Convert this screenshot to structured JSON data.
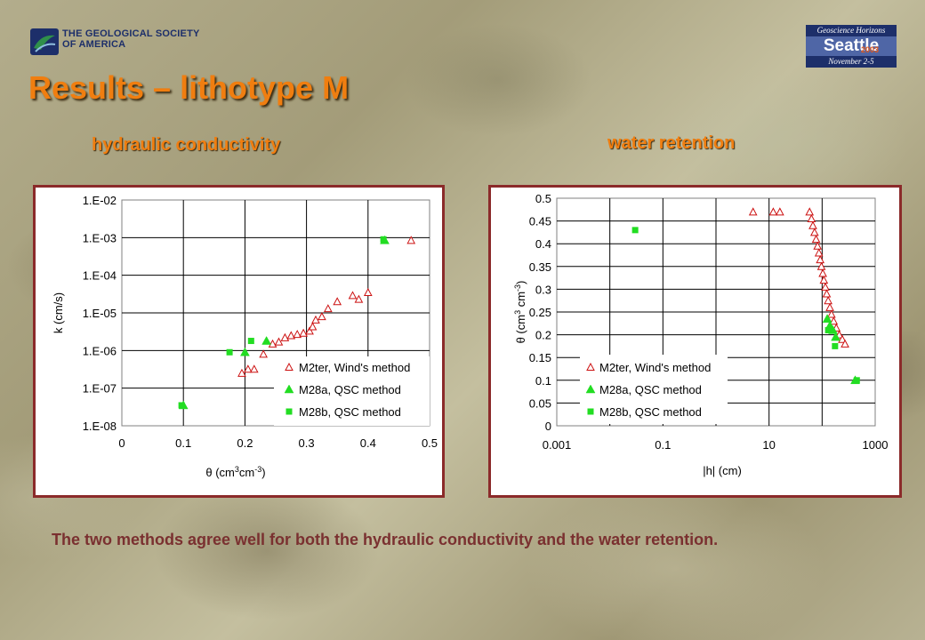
{
  "header": {
    "gsa_logo_text": [
      "THE GEOLOGICAL SOCIETY",
      "OF AMERICA"
    ],
    "event_logo": {
      "top": "Geoscience Horizons",
      "city": "Seattle",
      "year": "2003",
      "dates": "November 2-5"
    },
    "title": "Results – lithotype M",
    "subtitle_left": "hydraulic conductivity",
    "subtitle_right": "water retention"
  },
  "colors": {
    "title": "#f07e10",
    "frame": "#8b2a2a",
    "series_red": "#cc1111",
    "series_green": "#22dd22",
    "caption": "#7a3030"
  },
  "caption": "The two methods agree well for both the hydraulic conductivity and the water retention.",
  "chart_data": [
    {
      "type": "scatter",
      "ylabel": "k (cm/s)",
      "xlabel": "θ (cm3cm-3)",
      "xlim": [
        0,
        0.5
      ],
      "ylim_log10": [
        -8,
        -2
      ],
      "yscale": "log",
      "xticks": [
        "0",
        "0.1",
        "0.2",
        "0.3",
        "0.4",
        "0.5"
      ],
      "yticks": [
        "1.E-08",
        "1.E-07",
        "1.E-06",
        "1.E-05",
        "1.E-04",
        "1.E-03",
        "1.E-02"
      ],
      "grid": true,
      "legend": "bottom-right",
      "series": [
        {
          "name": "M2ter, Wind's method",
          "marker": "triangle-open",
          "color": "#cc1111",
          "x": [
            0.195,
            0.205,
            0.215,
            0.23,
            0.245,
            0.255,
            0.265,
            0.275,
            0.285,
            0.295,
            0.305,
            0.31,
            0.315,
            0.325,
            0.335,
            0.35,
            0.375,
            0.385,
            0.4,
            0.47
          ],
          "y": [
            2.5e-07,
            3.2e-07,
            3.2e-07,
            8e-07,
            1.5e-06,
            1.7e-06,
            2.2e-06,
            2.5e-06,
            2.7e-06,
            2.9e-06,
            3.3e-06,
            4.3e-06,
            6.5e-06,
            8e-06,
            1.3e-05,
            2e-05,
            2.9e-05,
            2.3e-05,
            3.5e-05,
            0.00085
          ]
        },
        {
          "name": "M28a, QSC method",
          "marker": "triangle-filled",
          "color": "#22dd22",
          "x": [
            0.1,
            0.2,
            0.235,
            0.427
          ],
          "y": [
            3.5e-08,
            9e-07,
            1.8e-06,
            0.00085
          ]
        },
        {
          "name": "M28b, QSC method",
          "marker": "square-filled",
          "color": "#22dd22",
          "x": [
            0.097,
            0.175,
            0.21,
            0.425
          ],
          "y": [
            3.5e-08,
            9e-07,
            1.8e-06,
            0.0009
          ]
        }
      ]
    },
    {
      "type": "scatter",
      "ylabel": "θ (cm3cm-3)",
      "xlabel": "|h| (cm)",
      "xscale": "log",
      "xlim_log10": [
        -3,
        3
      ],
      "ylim": [
        0,
        0.5
      ],
      "xticks": [
        "0.001",
        "0.1",
        "10",
        "1000"
      ],
      "yticks": [
        "0",
        "0.05",
        "0.1",
        "0.15",
        "0.2",
        "0.25",
        "0.3",
        "0.35",
        "0.4",
        "0.45",
        "0.5"
      ],
      "grid": true,
      "legend": "bottom-left",
      "series": [
        {
          "name": "M2ter, Wind's method",
          "marker": "triangle-open",
          "color": "#cc1111",
          "x": [
            5,
            12,
            16,
            58,
            63,
            67,
            72,
            77,
            82,
            87,
            92,
            97,
            103,
            108,
            115,
            122,
            130,
            140,
            150,
            165,
            185,
            210,
            240,
            270
          ],
          "y": [
            0.47,
            0.47,
            0.47,
            0.47,
            0.455,
            0.44,
            0.425,
            0.41,
            0.395,
            0.38,
            0.365,
            0.35,
            0.335,
            0.32,
            0.305,
            0.29,
            0.275,
            0.26,
            0.245,
            0.23,
            0.215,
            0.2,
            0.19,
            0.18
          ]
        },
        {
          "name": "M28a, QSC method",
          "marker": "triangle-filled",
          "color": "#22dd22",
          "x": [
            125,
            140,
            160,
            180,
            420
          ],
          "y": [
            0.235,
            0.22,
            0.21,
            0.195,
            0.1
          ]
        },
        {
          "name": "M28b, QSC method",
          "marker": "square-filled",
          "color": "#22dd22",
          "x": [
            0.03,
            130,
            175,
            450
          ],
          "y": [
            0.43,
            0.21,
            0.175,
            0.1
          ]
        }
      ]
    }
  ]
}
